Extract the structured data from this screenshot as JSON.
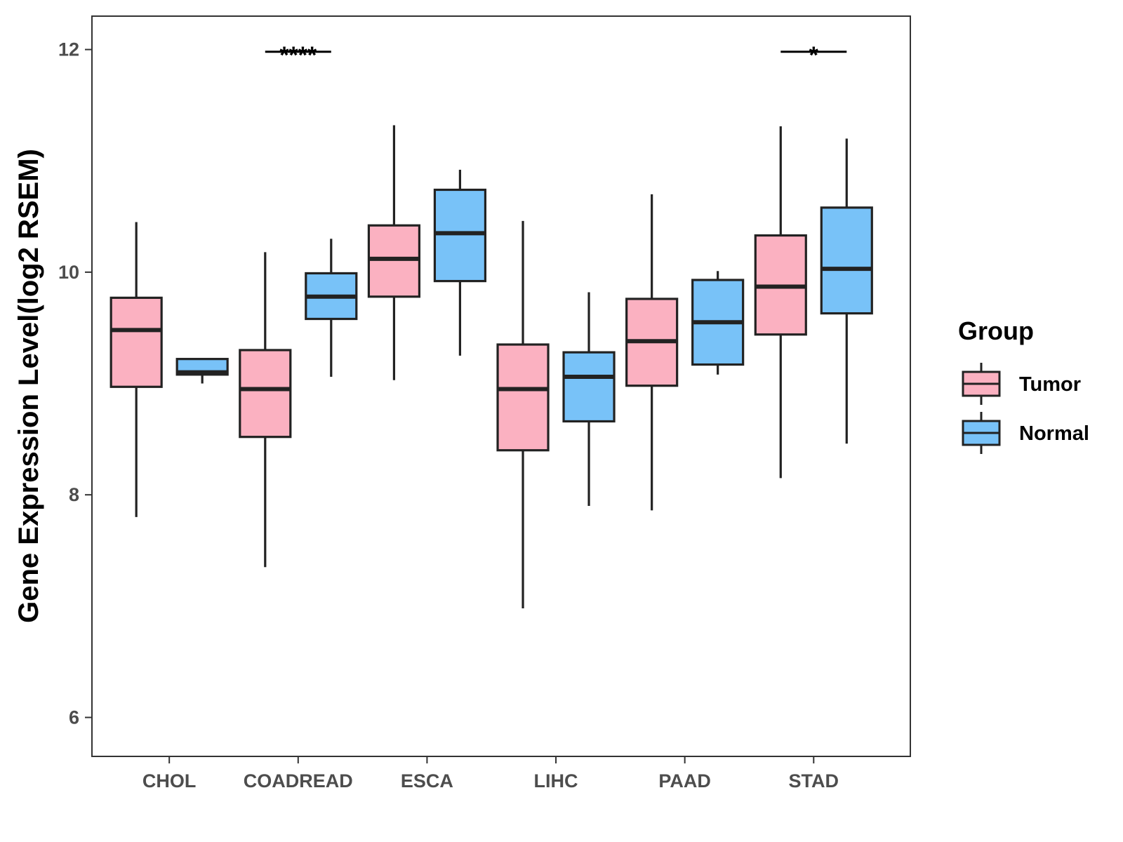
{
  "chart_data": {
    "type": "boxplot",
    "ylabel": "Gene Expression Level(log2 RSEM)",
    "xlabel": "",
    "ylim": [
      5.65,
      12.3
    ],
    "yticks": [
      6,
      8,
      10,
      12
    ],
    "categories": [
      "CHOL",
      "COADREAD",
      "ESCA",
      "LIHC",
      "PAAD",
      "STAD"
    ],
    "legend": {
      "title": "Group",
      "position": "right",
      "entries": [
        {
          "name": "Tumor",
          "color": "#FBB1C1"
        },
        {
          "name": "Normal",
          "color": "#78C2F8"
        }
      ]
    },
    "series": [
      {
        "name": "Tumor",
        "color": "#FBB1C1",
        "boxes": [
          {
            "category": "CHOL",
            "whisker_low": 7.8,
            "q1": 8.97,
            "median": 9.48,
            "q3": 9.77,
            "whisker_high": 10.45
          },
          {
            "category": "COADREAD",
            "whisker_low": 7.35,
            "q1": 8.52,
            "median": 8.95,
            "q3": 9.3,
            "whisker_high": 10.18
          },
          {
            "category": "ESCA",
            "whisker_low": 9.03,
            "q1": 9.78,
            "median": 10.12,
            "q3": 10.42,
            "whisker_high": 11.32
          },
          {
            "category": "LIHC",
            "whisker_low": 6.98,
            "q1": 8.4,
            "median": 8.95,
            "q3": 9.35,
            "whisker_high": 10.46
          },
          {
            "category": "PAAD",
            "whisker_low": 7.86,
            "q1": 8.98,
            "median": 9.38,
            "q3": 9.76,
            "whisker_high": 10.7
          },
          {
            "category": "STAD",
            "whisker_low": 8.15,
            "q1": 9.44,
            "median": 9.87,
            "q3": 10.33,
            "whisker_high": 11.31
          }
        ]
      },
      {
        "name": "Normal",
        "color": "#78C2F8",
        "boxes": [
          {
            "category": "CHOL",
            "whisker_low": 9.0,
            "q1": 9.08,
            "median": 9.1,
            "q3": 9.22,
            "whisker_high": 9.22
          },
          {
            "category": "COADREAD",
            "whisker_low": 9.06,
            "q1": 9.58,
            "median": 9.78,
            "q3": 9.99,
            "whisker_high": 10.3
          },
          {
            "category": "ESCA",
            "whisker_low": 9.25,
            "q1": 9.92,
            "median": 10.35,
            "q3": 10.74,
            "whisker_high": 10.92
          },
          {
            "category": "LIHC",
            "whisker_low": 7.9,
            "q1": 8.66,
            "median": 9.06,
            "q3": 9.28,
            "whisker_high": 9.82
          },
          {
            "category": "PAAD",
            "whisker_low": 9.08,
            "q1": 9.17,
            "median": 9.55,
            "q3": 9.93,
            "whisker_high": 10.01
          },
          {
            "category": "STAD",
            "whisker_low": 8.46,
            "q1": 9.63,
            "median": 10.03,
            "q3": 10.58,
            "whisker_high": 11.2
          }
        ]
      }
    ],
    "annotations": [
      {
        "category": "COADREAD",
        "label": "****",
        "y": 11.98
      },
      {
        "category": "STAD",
        "label": "*",
        "y": 11.98
      }
    ]
  }
}
